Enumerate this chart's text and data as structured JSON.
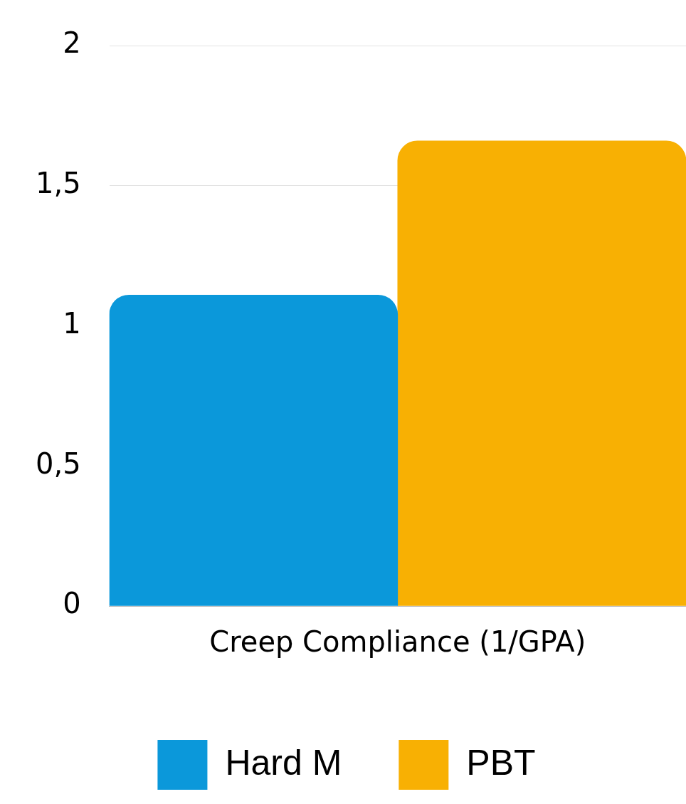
{
  "chart_data": {
    "type": "bar",
    "categories": [
      "Creep Compliance (1/GPA)"
    ],
    "series": [
      {
        "name": "Hard M",
        "color": "#0b98da",
        "values": [
          1.11
        ]
      },
      {
        "name": "PBT",
        "color": "#f8b003",
        "values": [
          1.66
        ]
      }
    ],
    "ylim": [
      0,
      2
    ],
    "yticks": [
      0,
      {
        "value": 0.5,
        "label": "0,5"
      },
      1,
      {
        "value": 1.5,
        "label": "1,5"
      },
      2
    ],
    "grid": "y",
    "legend": "bottom"
  }
}
